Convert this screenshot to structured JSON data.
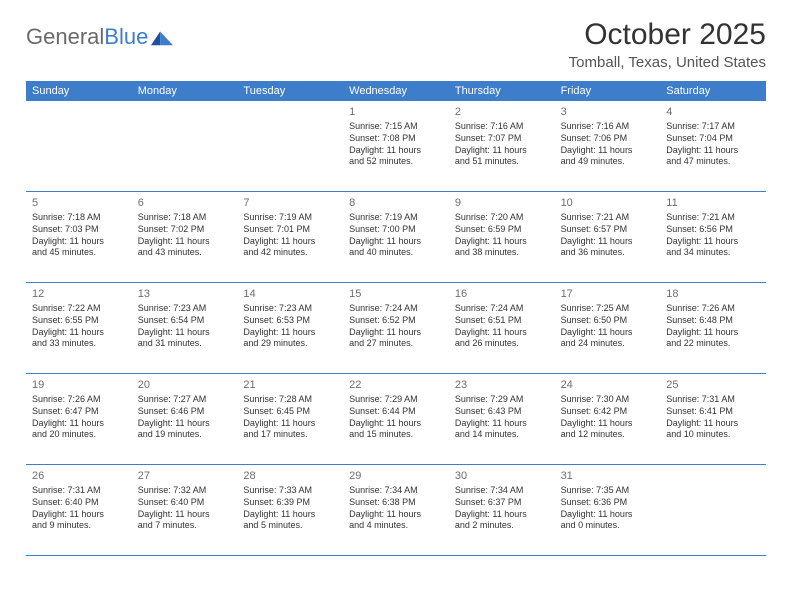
{
  "logo": {
    "part1": "General",
    "part2": "Blue"
  },
  "title": "October 2025",
  "location": "Tomball, Texas, United States",
  "colors": {
    "primary": "#3d7dca",
    "text": "#333333",
    "subtle": "#6e6e6e",
    "logo_gray": "#6a6a6a"
  },
  "day_names": [
    "Sunday",
    "Monday",
    "Tuesday",
    "Wednesday",
    "Thursday",
    "Friday",
    "Saturday"
  ],
  "weeks": [
    [
      null,
      null,
      null,
      {
        "day": "1",
        "sunrise": "Sunrise: 7:15 AM",
        "sunset": "Sunset: 7:08 PM",
        "daylight1": "Daylight: 11 hours",
        "daylight2": "and 52 minutes."
      },
      {
        "day": "2",
        "sunrise": "Sunrise: 7:16 AM",
        "sunset": "Sunset: 7:07 PM",
        "daylight1": "Daylight: 11 hours",
        "daylight2": "and 51 minutes."
      },
      {
        "day": "3",
        "sunrise": "Sunrise: 7:16 AM",
        "sunset": "Sunset: 7:06 PM",
        "daylight1": "Daylight: 11 hours",
        "daylight2": "and 49 minutes."
      },
      {
        "day": "4",
        "sunrise": "Sunrise: 7:17 AM",
        "sunset": "Sunset: 7:04 PM",
        "daylight1": "Daylight: 11 hours",
        "daylight2": "and 47 minutes."
      }
    ],
    [
      {
        "day": "5",
        "sunrise": "Sunrise: 7:18 AM",
        "sunset": "Sunset: 7:03 PM",
        "daylight1": "Daylight: 11 hours",
        "daylight2": "and 45 minutes."
      },
      {
        "day": "6",
        "sunrise": "Sunrise: 7:18 AM",
        "sunset": "Sunset: 7:02 PM",
        "daylight1": "Daylight: 11 hours",
        "daylight2": "and 43 minutes."
      },
      {
        "day": "7",
        "sunrise": "Sunrise: 7:19 AM",
        "sunset": "Sunset: 7:01 PM",
        "daylight1": "Daylight: 11 hours",
        "daylight2": "and 42 minutes."
      },
      {
        "day": "8",
        "sunrise": "Sunrise: 7:19 AM",
        "sunset": "Sunset: 7:00 PM",
        "daylight1": "Daylight: 11 hours",
        "daylight2": "and 40 minutes."
      },
      {
        "day": "9",
        "sunrise": "Sunrise: 7:20 AM",
        "sunset": "Sunset: 6:59 PM",
        "daylight1": "Daylight: 11 hours",
        "daylight2": "and 38 minutes."
      },
      {
        "day": "10",
        "sunrise": "Sunrise: 7:21 AM",
        "sunset": "Sunset: 6:57 PM",
        "daylight1": "Daylight: 11 hours",
        "daylight2": "and 36 minutes."
      },
      {
        "day": "11",
        "sunrise": "Sunrise: 7:21 AM",
        "sunset": "Sunset: 6:56 PM",
        "daylight1": "Daylight: 11 hours",
        "daylight2": "and 34 minutes."
      }
    ],
    [
      {
        "day": "12",
        "sunrise": "Sunrise: 7:22 AM",
        "sunset": "Sunset: 6:55 PM",
        "daylight1": "Daylight: 11 hours",
        "daylight2": "and 33 minutes."
      },
      {
        "day": "13",
        "sunrise": "Sunrise: 7:23 AM",
        "sunset": "Sunset: 6:54 PM",
        "daylight1": "Daylight: 11 hours",
        "daylight2": "and 31 minutes."
      },
      {
        "day": "14",
        "sunrise": "Sunrise: 7:23 AM",
        "sunset": "Sunset: 6:53 PM",
        "daylight1": "Daylight: 11 hours",
        "daylight2": "and 29 minutes."
      },
      {
        "day": "15",
        "sunrise": "Sunrise: 7:24 AM",
        "sunset": "Sunset: 6:52 PM",
        "daylight1": "Daylight: 11 hours",
        "daylight2": "and 27 minutes."
      },
      {
        "day": "16",
        "sunrise": "Sunrise: 7:24 AM",
        "sunset": "Sunset: 6:51 PM",
        "daylight1": "Daylight: 11 hours",
        "daylight2": "and 26 minutes."
      },
      {
        "day": "17",
        "sunrise": "Sunrise: 7:25 AM",
        "sunset": "Sunset: 6:50 PM",
        "daylight1": "Daylight: 11 hours",
        "daylight2": "and 24 minutes."
      },
      {
        "day": "18",
        "sunrise": "Sunrise: 7:26 AM",
        "sunset": "Sunset: 6:48 PM",
        "daylight1": "Daylight: 11 hours",
        "daylight2": "and 22 minutes."
      }
    ],
    [
      {
        "day": "19",
        "sunrise": "Sunrise: 7:26 AM",
        "sunset": "Sunset: 6:47 PM",
        "daylight1": "Daylight: 11 hours",
        "daylight2": "and 20 minutes."
      },
      {
        "day": "20",
        "sunrise": "Sunrise: 7:27 AM",
        "sunset": "Sunset: 6:46 PM",
        "daylight1": "Daylight: 11 hours",
        "daylight2": "and 19 minutes."
      },
      {
        "day": "21",
        "sunrise": "Sunrise: 7:28 AM",
        "sunset": "Sunset: 6:45 PM",
        "daylight1": "Daylight: 11 hours",
        "daylight2": "and 17 minutes."
      },
      {
        "day": "22",
        "sunrise": "Sunrise: 7:29 AM",
        "sunset": "Sunset: 6:44 PM",
        "daylight1": "Daylight: 11 hours",
        "daylight2": "and 15 minutes."
      },
      {
        "day": "23",
        "sunrise": "Sunrise: 7:29 AM",
        "sunset": "Sunset: 6:43 PM",
        "daylight1": "Daylight: 11 hours",
        "daylight2": "and 14 minutes."
      },
      {
        "day": "24",
        "sunrise": "Sunrise: 7:30 AM",
        "sunset": "Sunset: 6:42 PM",
        "daylight1": "Daylight: 11 hours",
        "daylight2": "and 12 minutes."
      },
      {
        "day": "25",
        "sunrise": "Sunrise: 7:31 AM",
        "sunset": "Sunset: 6:41 PM",
        "daylight1": "Daylight: 11 hours",
        "daylight2": "and 10 minutes."
      }
    ],
    [
      {
        "day": "26",
        "sunrise": "Sunrise: 7:31 AM",
        "sunset": "Sunset: 6:40 PM",
        "daylight1": "Daylight: 11 hours",
        "daylight2": "and 9 minutes."
      },
      {
        "day": "27",
        "sunrise": "Sunrise: 7:32 AM",
        "sunset": "Sunset: 6:40 PM",
        "daylight1": "Daylight: 11 hours",
        "daylight2": "and 7 minutes."
      },
      {
        "day": "28",
        "sunrise": "Sunrise: 7:33 AM",
        "sunset": "Sunset: 6:39 PM",
        "daylight1": "Daylight: 11 hours",
        "daylight2": "and 5 minutes."
      },
      {
        "day": "29",
        "sunrise": "Sunrise: 7:34 AM",
        "sunset": "Sunset: 6:38 PM",
        "daylight1": "Daylight: 11 hours",
        "daylight2": "and 4 minutes."
      },
      {
        "day": "30",
        "sunrise": "Sunrise: 7:34 AM",
        "sunset": "Sunset: 6:37 PM",
        "daylight1": "Daylight: 11 hours",
        "daylight2": "and 2 minutes."
      },
      {
        "day": "31",
        "sunrise": "Sunrise: 7:35 AM",
        "sunset": "Sunset: 6:36 PM",
        "daylight1": "Daylight: 11 hours",
        "daylight2": "and 0 minutes."
      },
      null
    ]
  ]
}
